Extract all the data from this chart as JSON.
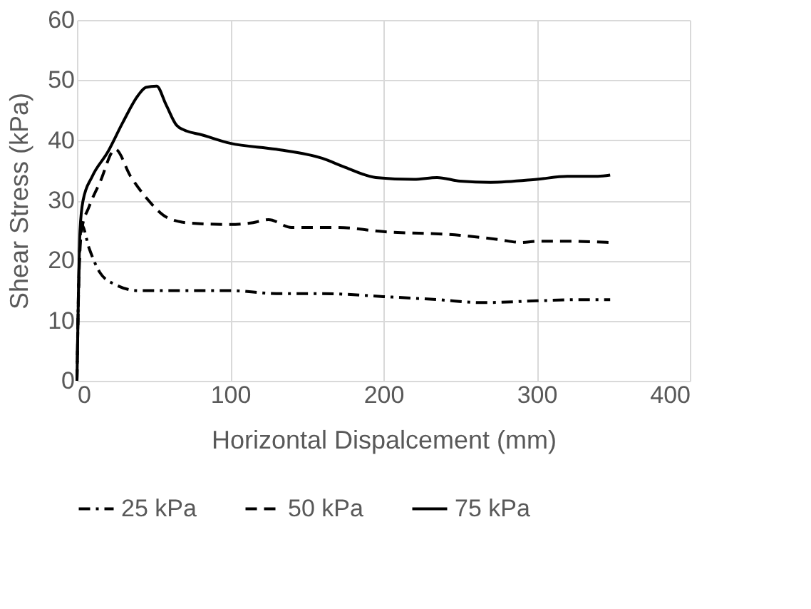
{
  "chart_data": {
    "type": "line",
    "xlabel": "Horizontal Dispalcement (mm)",
    "ylabel": "Shear Stress (kPa)",
    "xlim": [
      0,
      400
    ],
    "xticks": [
      0,
      100,
      200,
      300,
      400
    ],
    "ylim": [
      0,
      60
    ],
    "yticks": [
      0,
      10,
      20,
      30,
      40,
      50,
      60
    ],
    "grid": true,
    "legend": "bottom",
    "marker": "none",
    "series": [
      {
        "name": "25 kPa",
        "color": "#000000",
        "line_style": "dashdot",
        "x": [
          0,
          1,
          3,
          8,
          15,
          25,
          40,
          70,
          100,
          130,
          160,
          200,
          235,
          265,
          300,
          330,
          348
        ],
        "values": [
          0,
          15,
          26,
          22,
          18,
          16,
          15,
          15,
          15,
          14.5,
          14.5,
          14,
          13.5,
          13,
          13.3,
          13.5,
          13.5
        ]
      },
      {
        "name": "50 kPa",
        "color": "#000000",
        "line_style": "dashed",
        "x": [
          0,
          1,
          3,
          8,
          15,
          25,
          35,
          45,
          60,
          75,
          100,
          115,
          125,
          140,
          170,
          200,
          250,
          275,
          290,
          300,
          320,
          348
        ],
        "values": [
          0,
          14,
          25,
          29,
          33,
          38.5,
          34,
          30.5,
          27,
          26.2,
          26,
          26.3,
          26.8,
          25.5,
          25.5,
          24.8,
          24.2,
          23.5,
          23,
          23.2,
          23.2,
          23
        ]
      },
      {
        "name": "75 kPa",
        "color": "#000000",
        "line_style": "solid",
        "x": [
          0,
          1,
          2,
          4,
          10,
          20,
          30,
          40,
          45,
          52,
          58,
          65,
          72,
          80,
          100,
          130,
          160,
          175,
          195,
          220,
          235,
          250,
          270,
          300,
          320,
          340,
          348
        ],
        "values": [
          0,
          15,
          25,
          30,
          34,
          38,
          43,
          47.5,
          48.8,
          49,
          46,
          42.5,
          41.5,
          41,
          39.5,
          38.5,
          37,
          35.5,
          33.8,
          33.5,
          33.8,
          33.2,
          33,
          33.5,
          34,
          34,
          34.2
        ]
      }
    ]
  }
}
